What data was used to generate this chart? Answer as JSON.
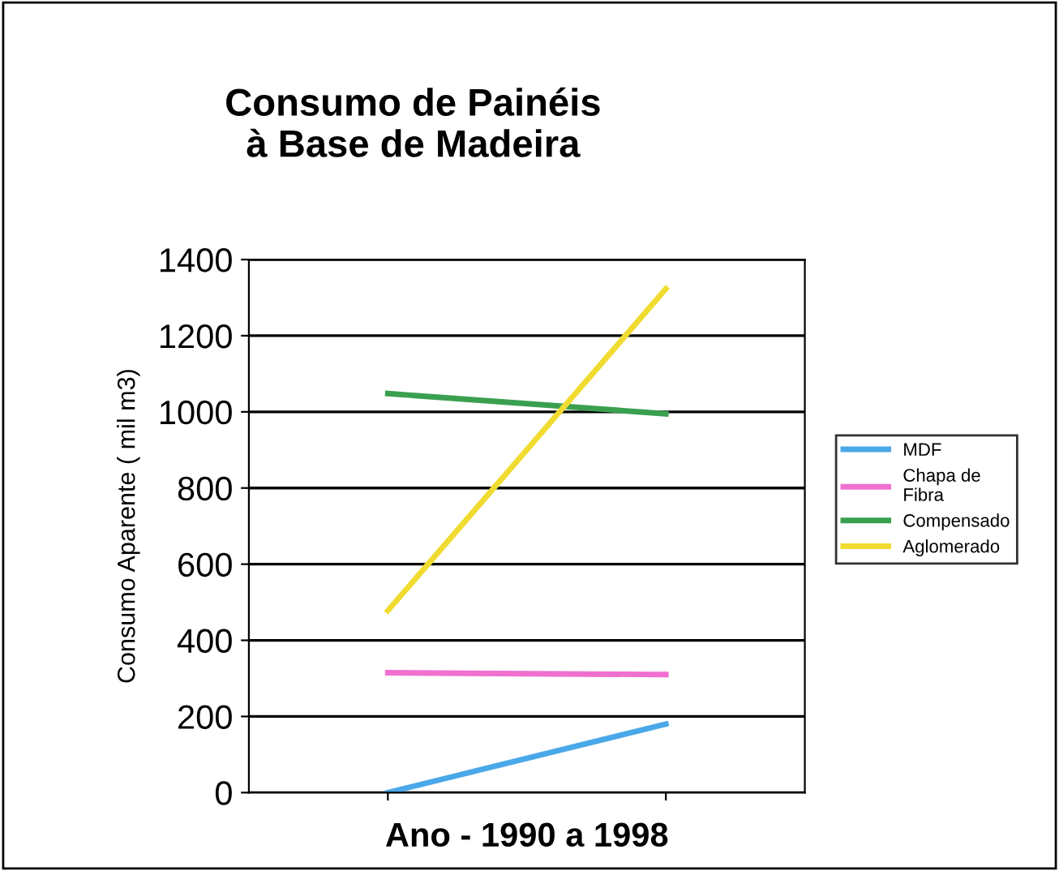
{
  "chart_data": {
    "type": "line",
    "title": "Consumo de Painéis\nà Base de Madeira",
    "xlabel": "Ano - 1990 a 1998",
    "ylabel": "Consumo Aparente ( mil m3)",
    "categories": [
      null,
      null
    ],
    "series": [
      {
        "name": "MDF",
        "color": "#4aa8e8",
        "values": [
          0,
          180
        ]
      },
      {
        "name": "Chapa de\nFibra",
        "color": "#f070d0",
        "values": [
          315,
          310
        ]
      },
      {
        "name": "Compensado",
        "color": "#3aa050",
        "values": [
          1048,
          995
        ]
      },
      {
        "name": "Aglomerado",
        "color": "#f0dc30",
        "values": [
          478,
          1323
        ]
      }
    ],
    "ylim": [
      0,
      1400
    ],
    "yticks": [
      0,
      200,
      400,
      600,
      800,
      1000,
      1200,
      1400
    ],
    "grid": "y",
    "legend": "right",
    "tick_labels": "y",
    "marker": "none",
    "line_style": "solid"
  }
}
